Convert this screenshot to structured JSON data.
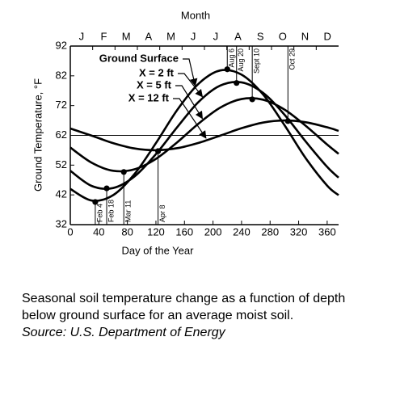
{
  "chart_data": {
    "type": "line",
    "title": "Month",
    "x_label": "Day of the Year",
    "y_label": "Ground Temperature, °F",
    "month_labels": [
      "J",
      "F",
      "M",
      "A",
      "M",
      "J",
      "J",
      "A",
      "S",
      "O",
      "N",
      "D"
    ],
    "x": [
      0,
      30,
      60,
      90,
      120,
      150,
      180,
      210,
      240,
      270,
      300,
      330,
      360,
      376
    ],
    "series": [
      {
        "name": "Ground Surface",
        "color": "#000000",
        "values": [
          44,
          40.1,
          41.9,
          49,
          59.4,
          70.6,
          79.4,
          83.8,
          82.4,
          75.8,
          65.5,
          54.3,
          45.1,
          41.9
        ]
      },
      {
        "name": "X = 2 ft",
        "color": "#000000",
        "values": [
          50.1,
          45,
          44.3,
          48.2,
          55.7,
          64.8,
          73.3,
          78.7,
          79.8,
          76.3,
          69,
          59.9,
          51.4,
          47.8
        ]
      },
      {
        "name": "X = 5 ft",
        "color": "#000000",
        "values": [
          57.9,
          52.8,
          50.1,
          50.6,
          54.1,
          59.7,
          66,
          71.3,
          74.2,
          74,
          70.7,
          65.2,
          58.9,
          55.8
        ]
      },
      {
        "name": "X = 12 ft",
        "color": "#000000",
        "values": [
          64.3,
          61.9,
          59.4,
          57.6,
          57,
          57.7,
          59.5,
          61.9,
          64.4,
          66.3,
          67,
          66.4,
          64.7,
          63.5
        ]
      }
    ],
    "events": [
      {
        "label": "Feb 4",
        "x": 35,
        "y": 39.6
      },
      {
        "label": "Feb 18",
        "x": 51,
        "y": 44.2
      },
      {
        "label": "Mar 11",
        "x": 75,
        "y": 49.7
      },
      {
        "label": "Apr 8",
        "x": 123,
        "y": 56.7
      },
      {
        "label": "Aug 6",
        "x": 220,
        "y": 84.2
      },
      {
        "label": "Aug 20",
        "x": 233,
        "y": 79.6
      },
      {
        "label": "Sept 10",
        "x": 255,
        "y": 74.1
      },
      {
        "label": "Oct 29",
        "x": 305,
        "y": 66.8
      }
    ],
    "hline": 62,
    "xlim": [
      0,
      376
    ],
    "ylim": [
      32,
      92
    ],
    "xticks": [
      0,
      40,
      80,
      120,
      160,
      200,
      240,
      280,
      320,
      360
    ],
    "yticks": [
      32,
      42,
      52,
      62,
      72,
      82,
      92
    ]
  },
  "caption": [
    "Seasonal soil temperature change as a function of depth",
    "below ground surface for an average moist soil.",
    "Source: U.S. Department of Energy"
  ]
}
